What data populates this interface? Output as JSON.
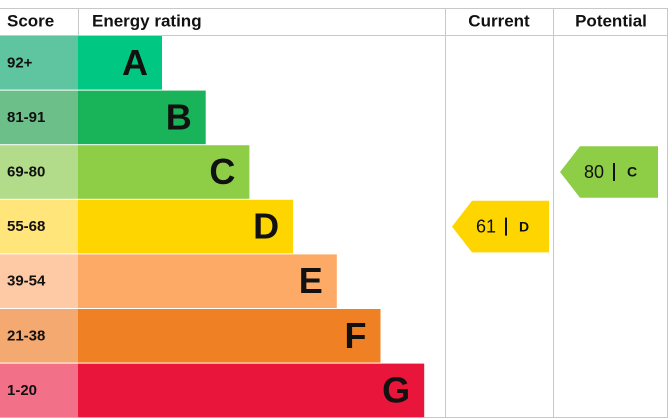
{
  "header": {
    "score": "Score",
    "rating": "Energy rating",
    "current": "Current",
    "potential": "Potential"
  },
  "rows": [
    {
      "score": "92+",
      "band": "A",
      "color": "#00c781",
      "score_color": "#5fc4a0"
    },
    {
      "score": "81-91",
      "band": "B",
      "color": "#19b459",
      "score_color": "#6cbf88"
    },
    {
      "score": "69-80",
      "band": "C",
      "color": "#8dce46",
      "score_color": "#b3dc8a"
    },
    {
      "score": "55-68",
      "band": "D",
      "color": "#ffd500",
      "score_color": "#ffe57a"
    },
    {
      "score": "39-54",
      "band": "E",
      "color": "#fcaa65",
      "score_color": "#fdcaa5"
    },
    {
      "score": "21-38",
      "band": "F",
      "color": "#ef8023",
      "score_color": "#f4a971"
    },
    {
      "score": "1-20",
      "band": "G",
      "color": "#e9153b",
      "score_color": "#f27189"
    }
  ],
  "current": {
    "value": 61,
    "band": "D"
  },
  "potential": {
    "value": 80,
    "band": "C"
  }
}
